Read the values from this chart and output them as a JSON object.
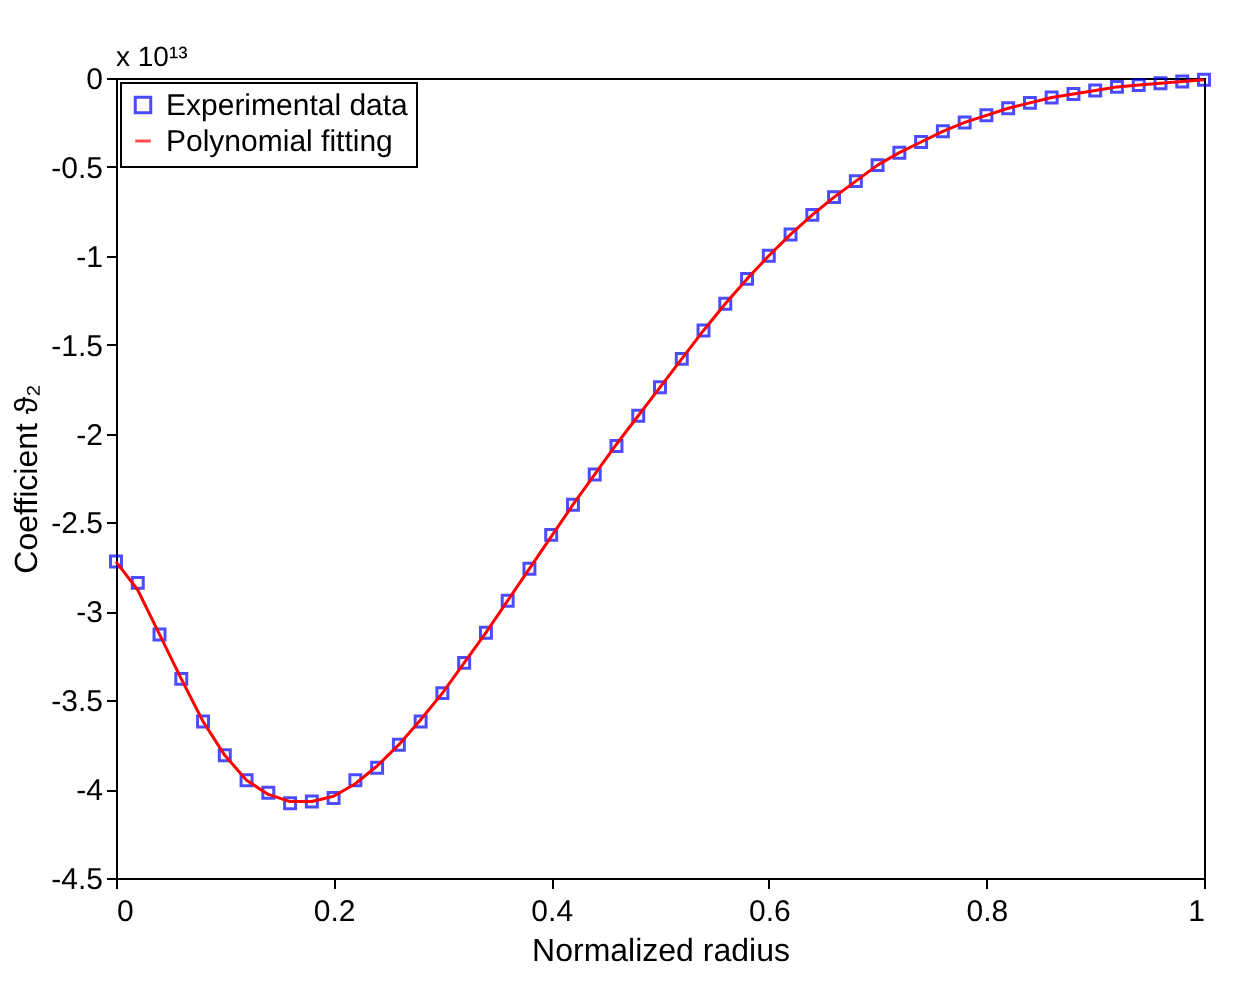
{
  "chart_data": {
    "type": "scatter",
    "xlabel": "Normalized radius",
    "ylabel": "Coefficient ϑ₂",
    "annotations": [
      "x 10¹³"
    ],
    "xlim": [
      0,
      1
    ],
    "xticks": [
      0,
      0.2,
      0.4,
      0.6,
      0.8,
      1
    ],
    "ylim": [
      -4.5,
      0
    ],
    "yticks": [
      -4.5,
      -4,
      -3.5,
      -3,
      -2.5,
      -2,
      -1.5,
      -1,
      -0.5,
      0
    ],
    "grid": false,
    "legend": "top left",
    "x": [
      0,
      0.02,
      0.04,
      0.06,
      0.08,
      0.1,
      0.12,
      0.14,
      0.16,
      0.18,
      0.2,
      0.22,
      0.24,
      0.26,
      0.28,
      0.3,
      0.32,
      0.34,
      0.36,
      0.38,
      0.4,
      0.42,
      0.44,
      0.46,
      0.48,
      0.5,
      0.52,
      0.54,
      0.56,
      0.58,
      0.6,
      0.62,
      0.64,
      0.66,
      0.68,
      0.7,
      0.72,
      0.74,
      0.76,
      0.78,
      0.8,
      0.82,
      0.84,
      0.86,
      0.88,
      0.9,
      0.92,
      0.94,
      0.96,
      0.98,
      1
    ],
    "series": [
      {
        "name": "Experimental data",
        "marker": "square",
        "color": "#0000ff",
        "values": [
          -2.72,
          -2.84,
          -3.13,
          -3.38,
          -3.62,
          -3.81,
          -3.95,
          -4.02,
          -4.08,
          -4.07,
          -4.05,
          -3.95,
          -3.88,
          -3.75,
          -3.62,
          -3.46,
          -3.29,
          -3.12,
          -2.94,
          -2.76,
          -2.57,
          -2.4,
          -2.23,
          -2.07,
          -1.9,
          -1.74,
          -1.58,
          -1.42,
          -1.27,
          -1.13,
          -1.0,
          -0.88,
          -0.77,
          -0.67,
          -0.58,
          -0.49,
          -0.42,
          -0.36,
          -0.3,
          -0.25,
          -0.21,
          -0.17,
          -0.14,
          -0.11,
          -0.09,
          -0.07,
          -0.05,
          -0.04,
          -0.03,
          -0.02,
          -0.01
        ]
      },
      {
        "name": "Polynomial fitting",
        "type": "line",
        "marker": "none",
        "line_style": "solid",
        "color": "#ff0000",
        "values": [
          -2.72,
          -2.88,
          -3.13,
          -3.38,
          -3.62,
          -3.81,
          -3.95,
          -4.03,
          -4.07,
          -4.07,
          -4.04,
          -3.97,
          -3.87,
          -3.75,
          -3.61,
          -3.46,
          -3.29,
          -3.12,
          -2.94,
          -2.76,
          -2.58,
          -2.4,
          -2.23,
          -2.06,
          -1.9,
          -1.74,
          -1.58,
          -1.42,
          -1.27,
          -1.13,
          -1.0,
          -0.88,
          -0.77,
          -0.67,
          -0.58,
          -0.49,
          -0.42,
          -0.36,
          -0.3,
          -0.25,
          -0.21,
          -0.17,
          -0.14,
          -0.11,
          -0.09,
          -0.07,
          -0.05,
          -0.04,
          -0.03,
          -0.02,
          -0.01
        ]
      }
    ]
  }
}
